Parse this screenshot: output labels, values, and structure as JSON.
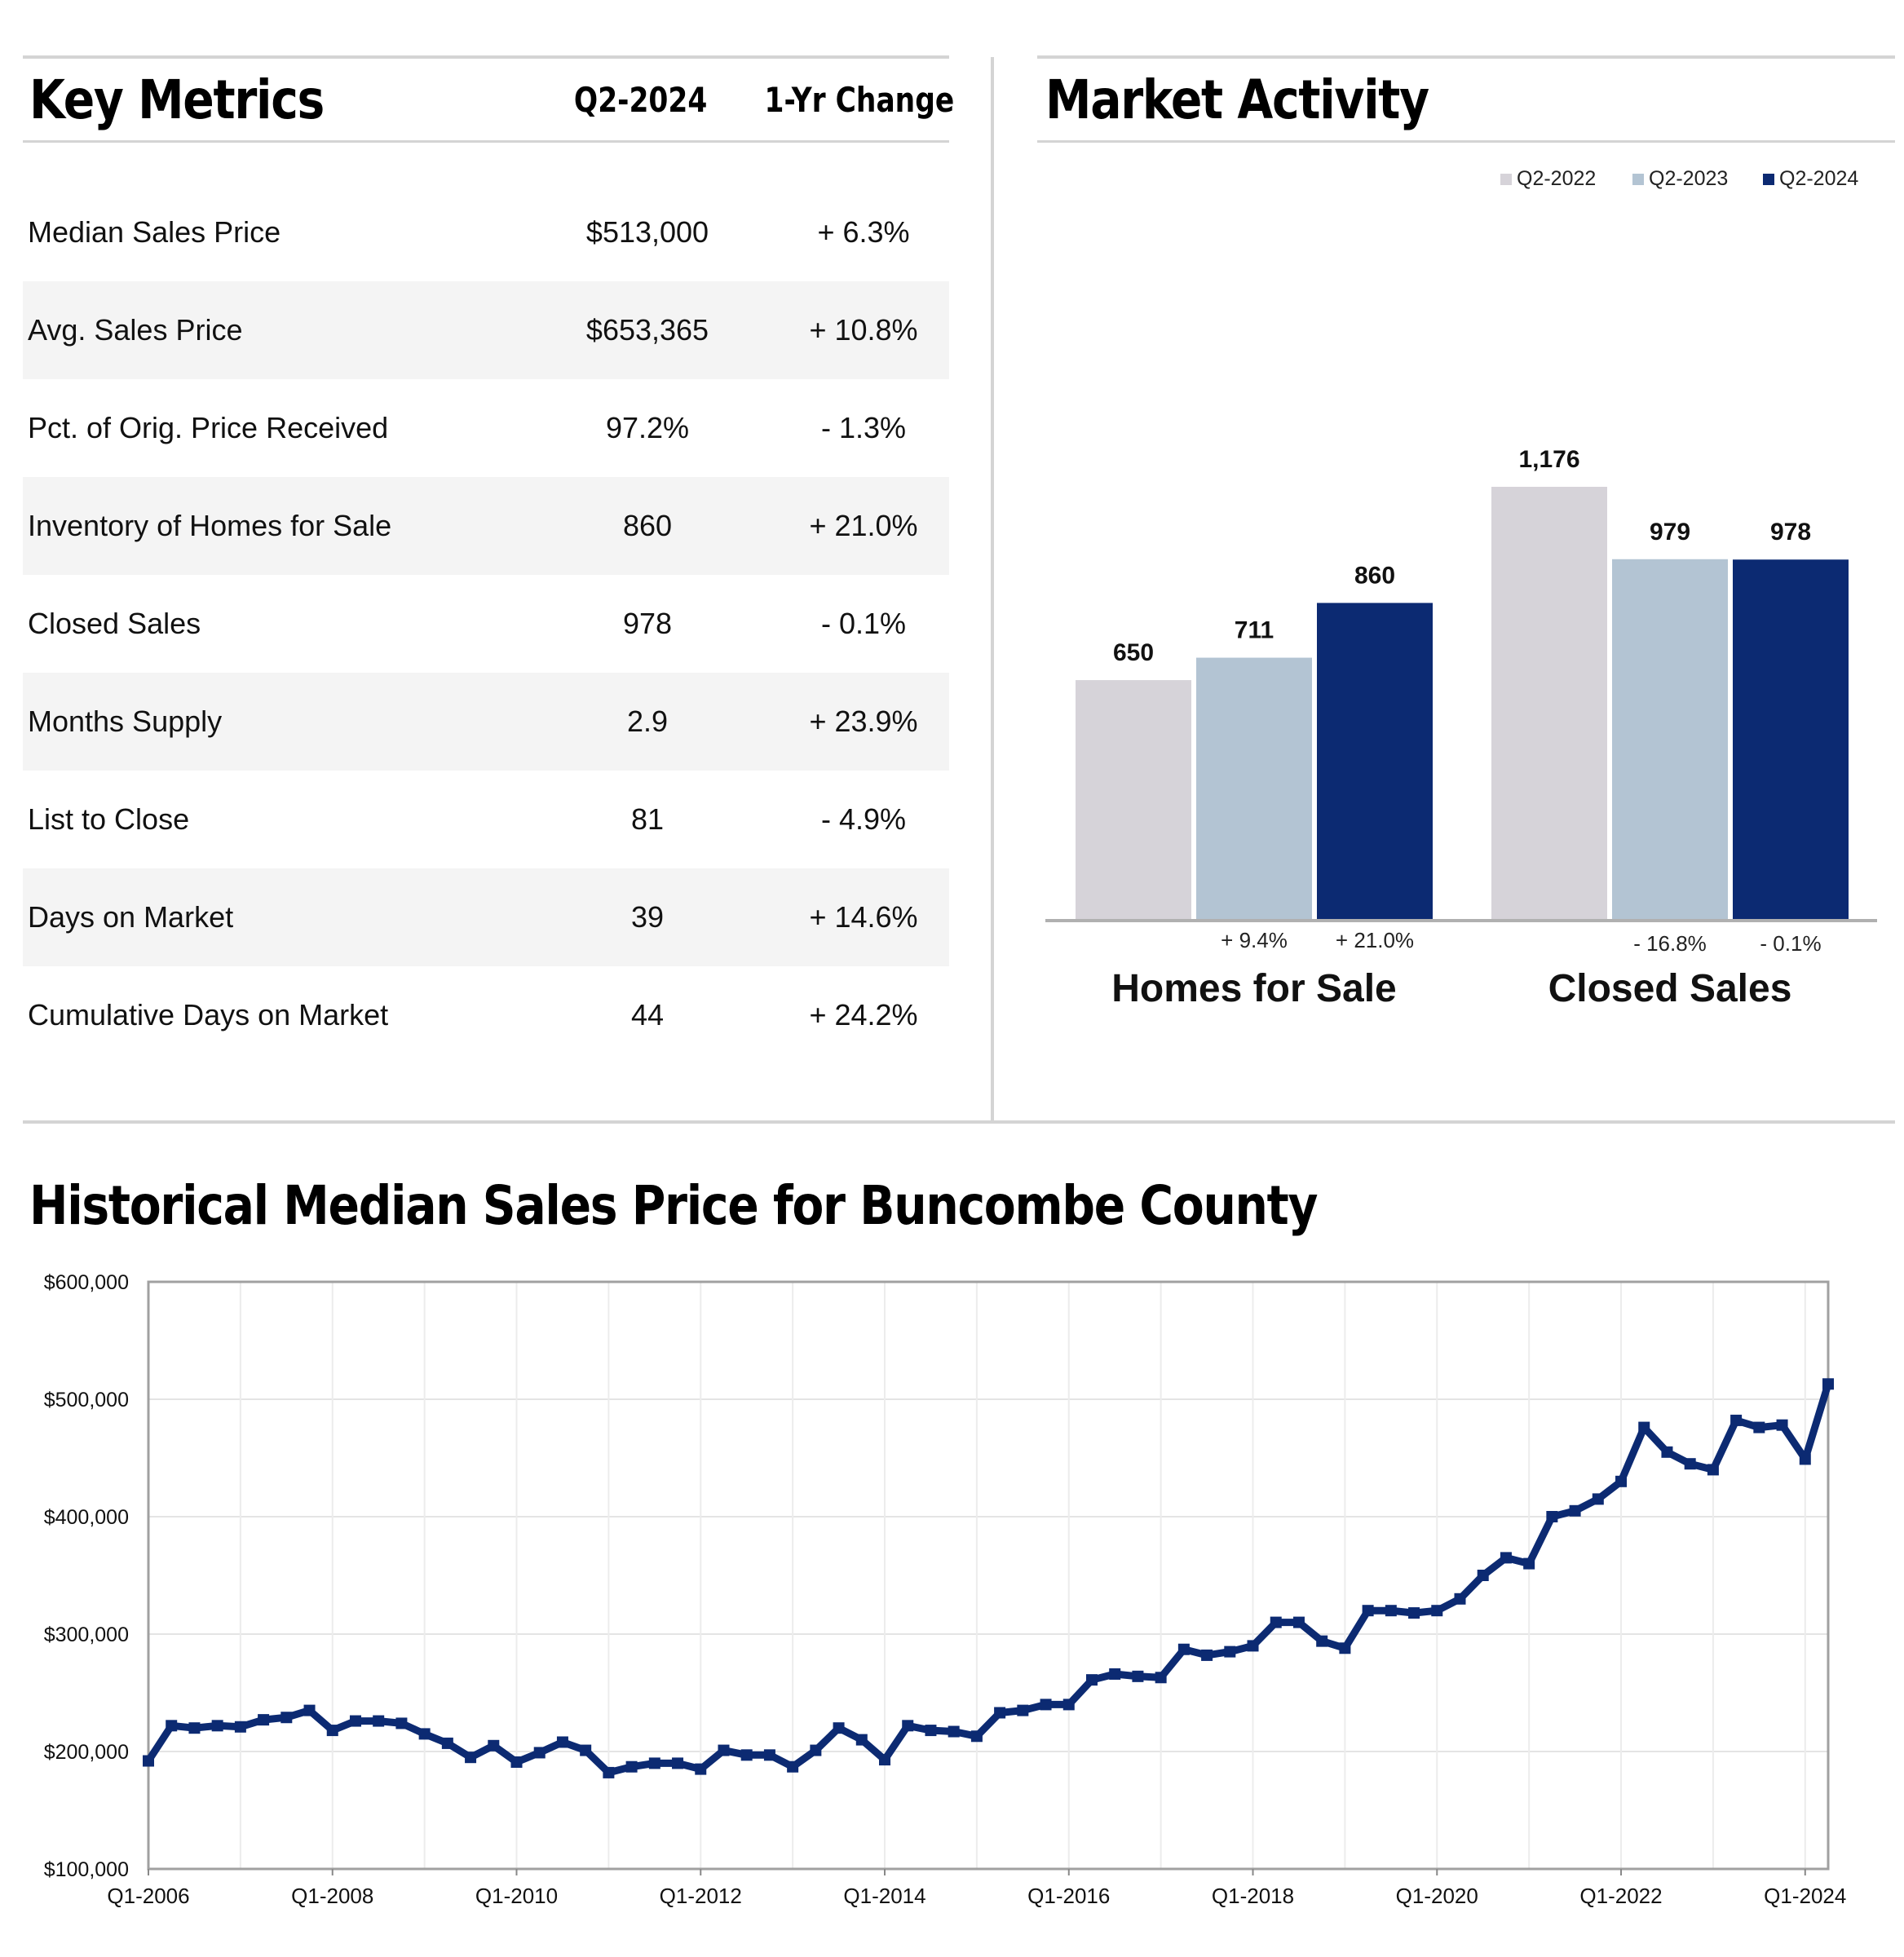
{
  "key_metrics": {
    "title": "Key Metrics",
    "col_period": "Q2-2024",
    "col_change": "1-Yr Change",
    "rows": [
      {
        "label": "Median Sales Price",
        "value": "$513,000",
        "change": "+ 6.3%"
      },
      {
        "label": "Avg. Sales Price",
        "value": "$653,365",
        "change": "+ 10.8%"
      },
      {
        "label": "Pct. of Orig. Price Received",
        "value": "97.2%",
        "change": "- 1.3%"
      },
      {
        "label": "Inventory of Homes for Sale",
        "value": "860",
        "change": "+ 21.0%"
      },
      {
        "label": "Closed Sales",
        "value": "978",
        "change": "- 0.1%"
      },
      {
        "label": "Months Supply",
        "value": "2.9",
        "change": "+ 23.9%"
      },
      {
        "label": "List to Close",
        "value": "81",
        "change": "- 4.9%"
      },
      {
        "label": "Days on Market",
        "value": "39",
        "change": "+ 14.6%"
      },
      {
        "label": "Cumulative Days on Market",
        "value": "44",
        "change": "+ 24.2%"
      }
    ]
  },
  "colors": {
    "q2_2022": "#d6d3d9",
    "q2_2023": "#b3c4d3",
    "q2_2024": "#0c2a72",
    "line": "#0c2a72",
    "rule": "#d4d4d4",
    "zebra": "#f4f4f4"
  },
  "chart_data": [
    {
      "type": "bar",
      "title": "Market Activity",
      "categories": [
        "Homes for Sale",
        "Closed Sales"
      ],
      "legend": [
        "Q2-2022",
        "Q2-2023",
        "Q2-2024"
      ],
      "legend_position": "top-right",
      "series": [
        {
          "name": "Q2-2022",
          "values": [
            650,
            1176
          ],
          "labels": [
            "650",
            "1,176"
          ]
        },
        {
          "name": "Q2-2023",
          "values": [
            711,
            979
          ],
          "labels": [
            "711",
            "979"
          ]
        },
        {
          "name": "Q2-2024",
          "values": [
            860,
            978
          ],
          "labels": [
            "860",
            "978"
          ]
        }
      ],
      "change_labels": [
        [
          "+ 9.4%",
          "+ 21.0%"
        ],
        [
          "- 16.8%",
          "- 0.1%"
        ]
      ],
      "ylim": [
        0,
        1176
      ]
    },
    {
      "type": "line",
      "title": "Historical Median Sales Price for Buncombe County",
      "xlabel": "",
      "ylabel": "",
      "ylim": [
        100000,
        600000
      ],
      "y_ticks": [
        "$100,000",
        "$200,000",
        "$300,000",
        "$400,000",
        "$500,000",
        "$600,000"
      ],
      "x_tick_labels": [
        "Q1-2006",
        "Q1-2008",
        "Q1-2010",
        "Q1-2012",
        "Q1-2014",
        "Q1-2016",
        "Q1-2018",
        "Q1-2020",
        "Q1-2022",
        "Q1-2024"
      ],
      "x_start": "Q1-2006",
      "grid": true,
      "series": [
        {
          "name": "Median Sales Price",
          "values": [
            192000,
            222000,
            220000,
            222000,
            221000,
            227000,
            229000,
            235000,
            218000,
            226000,
            226000,
            224000,
            215000,
            207000,
            195000,
            205000,
            191000,
            199000,
            208000,
            201000,
            182000,
            187000,
            190000,
            190000,
            185000,
            201000,
            197000,
            197000,
            187000,
            201000,
            220000,
            210000,
            193000,
            222000,
            218000,
            217000,
            213000,
            233000,
            235000,
            240000,
            240000,
            261000,
            266000,
            264000,
            263000,
            287000,
            282000,
            285000,
            290000,
            310000,
            310000,
            294000,
            288000,
            320000,
            320000,
            318000,
            320000,
            330000,
            350000,
            365000,
            360000,
            400000,
            405000,
            415000,
            430000,
            476000,
            455000,
            445000,
            440000,
            482000,
            476000,
            478000,
            449000,
            513000
          ]
        }
      ]
    }
  ]
}
